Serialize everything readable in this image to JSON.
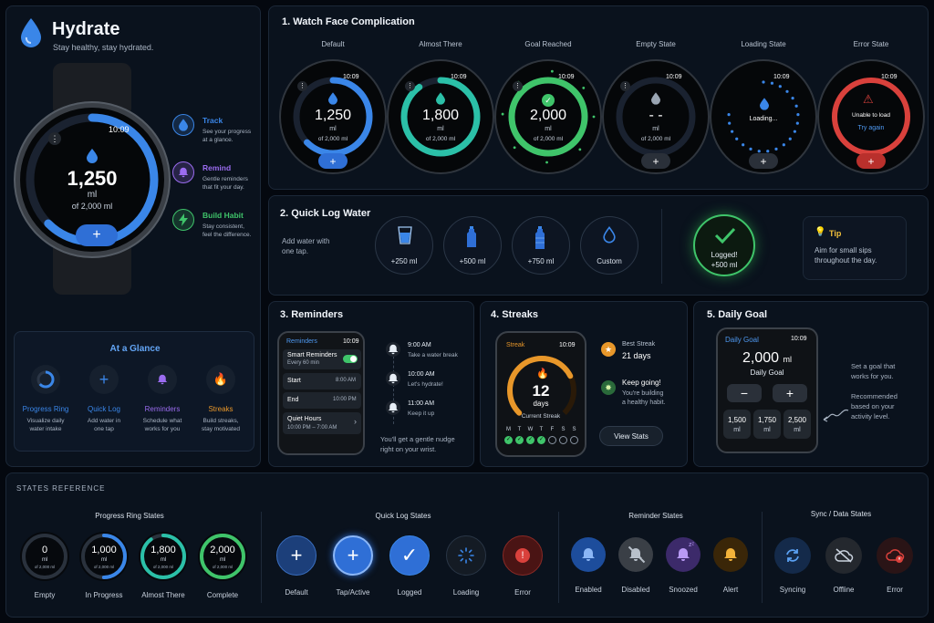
{
  "brand": {
    "title": "Hydrate",
    "subtitle": "Stay healthy, stay hydrated."
  },
  "hero_watch": {
    "time": "10:09",
    "value": "1,250",
    "unit": "ml",
    "goal": "of 2,000 ml",
    "progress": 0.625
  },
  "features": [
    {
      "title": "Track",
      "desc1": "See your progress",
      "desc2": "at a glance.",
      "icon": "droplet-icon",
      "color": "#3a86e8"
    },
    {
      "title": "Remind",
      "desc1": "Gentle reminders",
      "desc2": "that fit your day.",
      "icon": "bell-icon",
      "color": "#9b6cf0"
    },
    {
      "title": "Build Habit",
      "desc1": "Stay consistent,",
      "desc2": "feel the difference.",
      "icon": "bolt-icon",
      "color": "#3fc46a"
    }
  ],
  "glance": {
    "title": "At a Glance",
    "items": [
      {
        "label": "Progress Ring",
        "desc1": "Visualize daily",
        "desc2": "water intake",
        "icon": "ring-icon",
        "color": "#3a86e8"
      },
      {
        "label": "Quick Log",
        "desc1": "Add water in",
        "desc2": "one tap",
        "icon": "plus-icon",
        "color": "#3a86e8"
      },
      {
        "label": "Reminders",
        "desc1": "Schedule what",
        "desc2": "works for you",
        "icon": "bell-icon",
        "color": "#9b6cf0"
      },
      {
        "label": "Streaks",
        "desc1": "Build streaks,",
        "desc2": "stay motivated",
        "icon": "flame-icon",
        "color": "#e8972a"
      }
    ]
  },
  "section1": {
    "title": "1. Watch Face Complication",
    "faces": [
      {
        "label": "Default",
        "time": "10:09",
        "value": "1,250",
        "unit": "ml",
        "goal": "of 2,000 ml",
        "progress": 0.625,
        "color": "#3a86e8"
      },
      {
        "label": "Almost There",
        "time": "10:09",
        "value": "1,800",
        "unit": "ml",
        "goal": "of 2,000 ml",
        "progress": 0.9,
        "color": "#2bc0a8"
      },
      {
        "label": "Goal Reached",
        "time": "10:09",
        "value": "2,000",
        "unit": "ml",
        "goal": "of 2,000 ml",
        "progress": 1,
        "color": "#3fc46a"
      },
      {
        "label": "Empty State",
        "time": "10:09",
        "value": "- -",
        "unit": "ml",
        "goal": "of 2,000 ml",
        "progress": 0,
        "color": "#6b7686"
      },
      {
        "label": "Loading State",
        "time": "10:09",
        "value": "Loading...",
        "unit": "",
        "goal": "",
        "progress": 0,
        "color": "#3a86e8"
      },
      {
        "label": "Error State",
        "time": "10:09",
        "value": "Unable to load",
        "unit": "Try again",
        "goal": "",
        "progress": 0,
        "color": "#d9413c"
      }
    ]
  },
  "section2": {
    "title": "2. Quick Log Water",
    "desc1": "Add water with",
    "desc2": "one tap.",
    "options": [
      {
        "label": "+250 ml",
        "icon": "glass-icon"
      },
      {
        "label": "+500 ml",
        "icon": "bottle-icon"
      },
      {
        "label": "+750 ml",
        "icon": "bottle-large-icon"
      },
      {
        "label": "Custom",
        "icon": "droplet-outline-icon"
      }
    ],
    "logged": {
      "line1": "Logged!",
      "line2": "+500 ml"
    },
    "tip": {
      "title": "Tip",
      "line1": "Aim for small sips",
      "line2": "throughout the day."
    }
  },
  "section3": {
    "title": "3. Reminders",
    "screen": {
      "header": "Reminders",
      "time": "10:09",
      "toggle_label": "Smart Reminders",
      "toggle_sub": "Every 60 min",
      "toggle_on": true,
      "start_label": "Start",
      "start_value": "8:00 AM",
      "end_label": "End",
      "end_value": "10:00 PM",
      "quiet_label": "Quiet Hours",
      "quiet_value": "10:00 PM – 7:00 AM"
    },
    "timeline": [
      {
        "time": "9:00 AM",
        "text": "Take a water break"
      },
      {
        "time": "10:00 AM",
        "text": "Let's hydrate!"
      },
      {
        "time": "11:00 AM",
        "text": "Keep it up"
      }
    ],
    "footer1": "You'll get a gentle nudge",
    "footer2": "right on your wrist."
  },
  "section4": {
    "title": "4. Streaks",
    "screen": {
      "header": "Streak",
      "time": "10:09",
      "value": "12",
      "unit": "days",
      "label": "Current Streak",
      "days": [
        "M",
        "T",
        "W",
        "T",
        "F",
        "S",
        "S"
      ],
      "done": [
        true,
        true,
        true,
        true,
        false,
        false,
        false
      ]
    },
    "best_label": "Best Streak",
    "best_value": "21 days",
    "keep_title": "Keep going!",
    "keep_line1": "You're building",
    "keep_line2": "a healthy habit.",
    "button": "View Stats"
  },
  "section5": {
    "title": "5. Daily Goal",
    "screen": {
      "header": "Daily Goal",
      "time": "10:09",
      "value": "2,000",
      "unit": "ml",
      "label": "Daily Goal",
      "presets": [
        {
          "v": "1,500",
          "u": "ml"
        },
        {
          "v": "1,750",
          "u": "ml"
        },
        {
          "v": "2,500",
          "u": "ml"
        }
      ]
    },
    "note1": "Set a goal that",
    "note2": "works for you.",
    "note3": "Recommended",
    "note4": "based on your",
    "note5": "activity level."
  },
  "states": {
    "title": "STATES REFERENCE",
    "ring": {
      "title": "Progress Ring States",
      "items": [
        {
          "value": "0",
          "unit": "ml",
          "goal": "of 2,000 ml",
          "label": "Empty",
          "progress": 0,
          "color": "#6b7686"
        },
        {
          "value": "1,000",
          "unit": "ml",
          "goal": "of 2,000 ml",
          "label": "In Progress",
          "progress": 0.5,
          "color": "#3a86e8"
        },
        {
          "value": "1,800",
          "unit": "ml",
          "goal": "of 2,000 ml",
          "label": "Almost There",
          "progress": 0.9,
          "color": "#2bc0a8"
        },
        {
          "value": "2,000",
          "unit": "ml",
          "goal": "of 2,000 ml",
          "label": "Complete",
          "progress": 1,
          "color": "#3fc46a"
        }
      ]
    },
    "quick": {
      "title": "Quick Log States",
      "items": [
        {
          "label": "Default",
          "icon": "plus-icon"
        },
        {
          "label": "Tap/Active",
          "icon": "plus-icon"
        },
        {
          "label": "Logged",
          "icon": "check-icon"
        },
        {
          "label": "Loading",
          "icon": "spinner-icon"
        },
        {
          "label": "Error",
          "icon": "alert-icon"
        }
      ]
    },
    "reminder": {
      "title": "Reminder States",
      "items": [
        {
          "label": "Enabled",
          "icon": "bell-icon"
        },
        {
          "label": "Disabled",
          "icon": "bell-off-icon"
        },
        {
          "label": "Snoozed",
          "icon": "bell-snooze-icon"
        },
        {
          "label": "Alert",
          "icon": "bell-alert-icon"
        }
      ]
    },
    "sync": {
      "title": "Sync / Data States",
      "items": [
        {
          "label": "Syncing",
          "icon": "sync-icon"
        },
        {
          "label": "Offline",
          "icon": "cloud-off-icon"
        },
        {
          "label": "Error",
          "icon": "cloud-error-icon"
        }
      ]
    }
  },
  "colors": {
    "blue": "#3a86e8",
    "teal": "#2bc0a8",
    "green": "#3fc46a",
    "purple": "#9b6cf0",
    "orange": "#e8972a",
    "red": "#d9413c"
  }
}
